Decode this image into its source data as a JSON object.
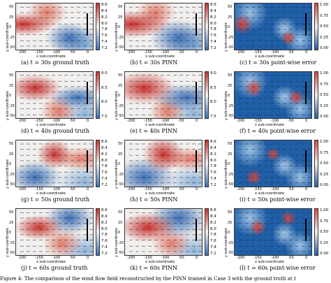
{
  "figure": {
    "caption": "Figure 4: The comparison of the wind flow field reconstructed by the PINN trained in Case 3 with the ground truth at t"
  },
  "axes": {
    "xlabel": "x sub-coordinate",
    "ylabel": "y sub-coordinate",
    "xticks": [
      "-200",
      "-150",
      "-100",
      "-50",
      "0"
    ],
    "yticks_a": [
      "50",
      "25",
      "0",
      "-25",
      "-50"
    ]
  },
  "colorbars": {
    "wind": [
      "8.6",
      "8.4",
      "8.2",
      "8.0",
      "7.8",
      "7.6",
      "7.4",
      "7.2"
    ],
    "wind_b": [
      "9.0",
      "8.5",
      "8.0",
      "7.5"
    ],
    "wind_c": [
      "8.8",
      "8.6",
      "8.4",
      "8.2",
      "8.0",
      "7.8",
      "7.6",
      "7.4",
      "7.2"
    ],
    "error": [
      "1.00",
      "0.75",
      "0.50",
      "0.25",
      "0.00"
    ]
  },
  "rows": [
    {
      "captions": [
        "(a) t = 30s ground truth",
        "(b) t = 30s PINN",
        "(c) t = 30s point-wise error"
      ]
    },
    {
      "captions": [
        "(d) t = 40s ground truth",
        "(e) t = 40s PINN",
        "(f) t = 40s point-wise error"
      ]
    },
    {
      "captions": [
        "(g) t = 50s ground truth",
        "(h) t = 50s PINN",
        "(i) t = 50s point-wise error"
      ]
    },
    {
      "captions": [
        "(j) t = 60s ground truth",
        "(k) t = 60s PINN",
        "(l) t = 60s point-wise error"
      ]
    }
  ],
  "colors": {
    "cool": "#3b6fb6",
    "warm": "#c8312d",
    "neutral": "#f2f0ee",
    "error_low": "#1f5fa8",
    "error_high": "#d6473f"
  }
}
